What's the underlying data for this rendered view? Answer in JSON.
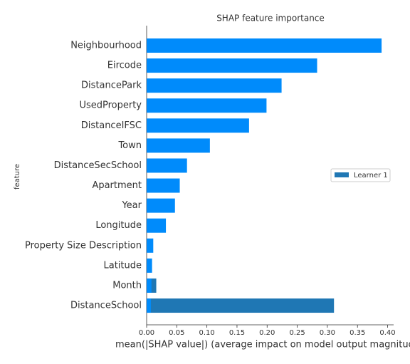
{
  "chart_data": {
    "type": "bar",
    "orientation": "horizontal",
    "title": "SHAP feature importance",
    "xlabel": "mean(|SHAP value|) (average impact on model output magnitude)",
    "ylabel": "feature",
    "categories": [
      "Neighbourhood",
      "Eircode",
      "DistancePark",
      "UsedProperty",
      "DistanceIFSC",
      "Town",
      "DistanceSecSchool",
      "Apartment",
      "Year",
      "Longitude",
      "Property Size Description",
      "Latitude",
      "Month",
      "DistanceSchool"
    ],
    "series": [
      {
        "name": "Learner 1",
        "color": "#1f77b4",
        "values": [
          null,
          null,
          null,
          null,
          null,
          null,
          null,
          null,
          null,
          null,
          null,
          null,
          0.016,
          0.311
        ]
      },
      {
        "color": "#008bfb",
        "values": [
          0.39,
          0.283,
          0.224,
          0.199,
          0.17,
          0.105,
          0.067,
          0.055,
          0.047,
          0.032,
          0.011,
          0.009,
          0.008,
          0.007
        ]
      }
    ],
    "xlim": [
      0,
      0.41
    ],
    "xticks": [
      {
        "value": 0,
        "label": "0.00"
      },
      {
        "value": 0.05,
        "label": "0.05"
      },
      {
        "value": 0.1,
        "label": "0.10"
      },
      {
        "value": 0.15,
        "label": "0.15"
      },
      {
        "value": 0.2,
        "label": "0.20"
      },
      {
        "value": 0.25,
        "label": "0.25"
      },
      {
        "value": 0.3,
        "label": "0.30"
      },
      {
        "value": 0.35,
        "label": "0.35"
      },
      {
        "value": 0.4,
        "label": "0.40"
      }
    ],
    "legend": "right"
  }
}
